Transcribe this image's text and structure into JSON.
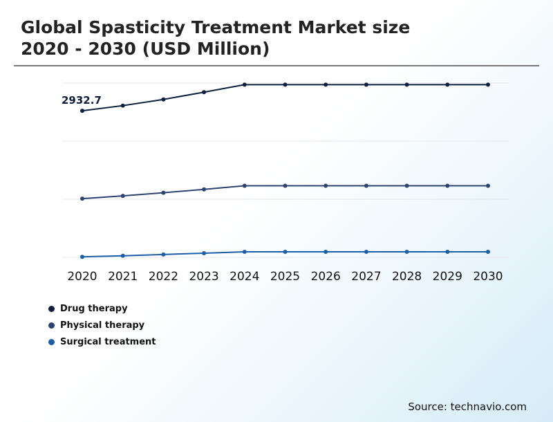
{
  "title_line1": "Global Spasticity Treatment Market size",
  "title_line2": "2020 - 2030 (USD Million)",
  "source": "Source: technavio.com",
  "chart_data": {
    "type": "line",
    "categories": [
      "2020",
      "2021",
      "2022",
      "2023",
      "2024",
      "2025",
      "2026",
      "2027",
      "2028",
      "2029",
      "2030"
    ],
    "series": [
      {
        "name": "Drug therapy",
        "color": "#0d1f3c",
        "values": [
          2932.7,
          3093,
          3287,
          3514,
          3749,
          3749,
          3749,
          3749,
          3749,
          3749,
          3749
        ]
      },
      {
        "name": "Physical therapy",
        "color": "#2e4470",
        "values": [
          185,
          271,
          370,
          476,
          589,
          589,
          589,
          589,
          589,
          589,
          589
        ]
      },
      {
        "name": "Surgical treatment",
        "color": "#1a5fa8",
        "values": [
          -1633,
          -1600,
          -1561,
          -1519,
          -1477,
          -1477,
          -1477,
          -1477,
          -1477,
          -1477,
          -1477
        ]
      }
    ],
    "data_labels": [
      {
        "series": 0,
        "index": 0,
        "text": "2932.7"
      }
    ],
    "ylim": [
      -1650,
      3800
    ],
    "grid": true,
    "legend_position": "bottom-left",
    "xlabel": "",
    "ylabel": ""
  }
}
